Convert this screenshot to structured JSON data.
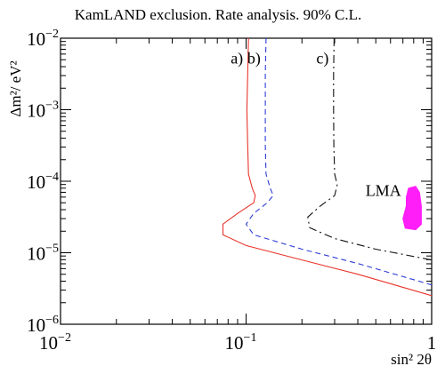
{
  "chart_data": {
    "type": "line",
    "title": "KamLAND exclusion.  Rate analysis.  90% C.L.",
    "xlabel": "sin² 2θ",
    "ylabel": "Δm²/ eV²",
    "x_scale": "log",
    "y_scale": "log",
    "xlim": [
      0.01,
      1
    ],
    "ylim": [
      1e-06,
      0.01
    ],
    "grid": false,
    "x_ticks": [
      {
        "base": "10",
        "exp": "−2",
        "value": 0.01
      },
      {
        "base": "10",
        "exp": "−1",
        "value": 0.1
      },
      {
        "base": "1",
        "exp": "",
        "value": 1
      }
    ],
    "y_ticks": [
      {
        "base": "10",
        "exp": "−2",
        "value": 0.01
      },
      {
        "base": "10",
        "exp": "−3",
        "value": 0.001
      },
      {
        "base": "10",
        "exp": "−4",
        "value": 0.0001
      },
      {
        "base": "10",
        "exp": "−5",
        "value": 1e-05
      },
      {
        "base": "10",
        "exp": "−6",
        "value": 1e-06
      }
    ],
    "series": [
      {
        "name": "a)",
        "color": "#e8352b",
        "dash": "solid",
        "points": [
          [
            0.103,
            0.01
          ],
          [
            0.102,
            0.00316
          ],
          [
            0.101,
            0.001
          ],
          [
            0.102,
            0.000316
          ],
          [
            0.103,
            0.000126
          ],
          [
            0.108,
            7.94e-05
          ],
          [
            0.112,
            6.31e-05
          ],
          [
            0.11,
            5.01e-05
          ],
          [
            0.09,
            3.55e-05
          ],
          [
            0.075,
            2.51e-05
          ],
          [
            0.075,
            1.78e-05
          ],
          [
            0.1,
            1.26e-05
          ],
          [
            0.2,
            7.94e-06
          ],
          [
            0.4,
            5.01e-06
          ],
          [
            1.0,
            2.51e-06
          ]
        ]
      },
      {
        "name": "b)",
        "color": "#2d3fd4",
        "dash": "dashed",
        "points": [
          [
            0.128,
            0.01
          ],
          [
            0.127,
            0.00316
          ],
          [
            0.127,
            0.001
          ],
          [
            0.127,
            0.000316
          ],
          [
            0.128,
            0.000126
          ],
          [
            0.135,
            7.94e-05
          ],
          [
            0.14,
            6.31e-05
          ],
          [
            0.13,
            5.01e-05
          ],
          [
            0.11,
            3.55e-05
          ],
          [
            0.1,
            2.51e-05
          ],
          [
            0.11,
            1.78e-05
          ],
          [
            0.2,
            1.12e-05
          ],
          [
            0.4,
            7.08e-06
          ],
          [
            1.0,
            3.55e-06
          ]
        ]
      },
      {
        "name": "c)",
        "color": "#111111",
        "dash": "dashdot",
        "points": [
          [
            0.298,
            0.01
          ],
          [
            0.296,
            0.00316
          ],
          [
            0.296,
            0.001
          ],
          [
            0.297,
            0.000316
          ],
          [
            0.3,
            0.000126
          ],
          [
            0.31,
            8.91e-05
          ],
          [
            0.3,
            6.31e-05
          ],
          [
            0.25,
            4.47e-05
          ],
          [
            0.215,
            3.16e-05
          ],
          [
            0.22,
            2.24e-05
          ],
          [
            0.3,
            1.58e-05
          ],
          [
            0.5,
            1.12e-05
          ],
          [
            1.0,
            7.94e-06
          ]
        ]
      }
    ],
    "regions": [
      {
        "name": "LMA",
        "color": "#ff1ef7",
        "points": [
          [
            0.75,
            8e-05
          ],
          [
            0.82,
            8.5e-05
          ],
          [
            0.86,
            7e-05
          ],
          [
            0.88,
            4.5e-05
          ],
          [
            0.88,
            2.5e-05
          ],
          [
            0.82,
            2.1e-05
          ],
          [
            0.72,
            2.2e-05
          ],
          [
            0.7,
            3e-05
          ],
          [
            0.73,
            4.5e-05
          ],
          [
            0.73,
            6e-05
          ]
        ]
      }
    ]
  }
}
